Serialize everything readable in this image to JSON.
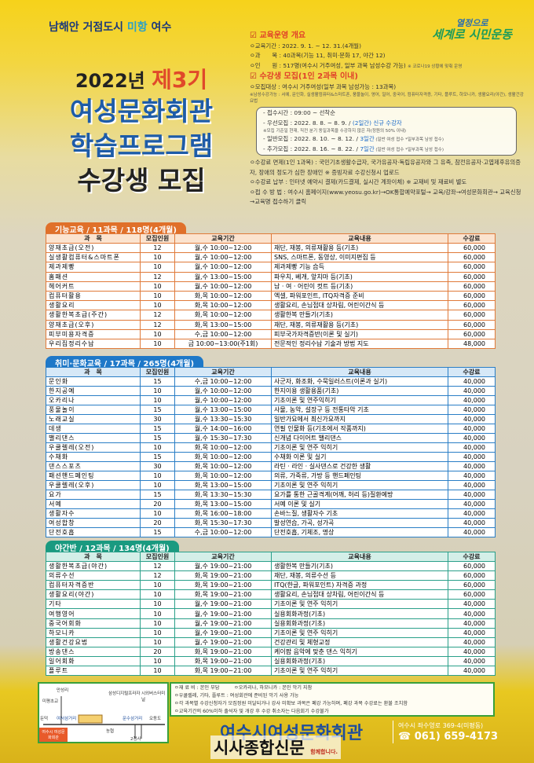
{
  "header": {
    "slogan_a": "남해안 거점도시 ",
    "slogan_b": "미항",
    "slogan_c": " 여수",
    "brand_small": "열정으로",
    "brand": "세계로 시민운동"
  },
  "title": {
    "year": "2022년",
    "term": "제3기",
    "line1": "여성문화회관",
    "line2": "학습프로그램",
    "line3": "수강생 모집"
  },
  "info": {
    "overview_title": "교육운영 개요",
    "overview": [
      "ㅇ교육기간 : 2022. 9. 1. ~ 12. 31.(4개월)",
      "ㅇ과　　목 : 40과목(기능 11, 취미·문화 17, 야간 12)",
      "ㅇ인　　원 : 517명(여수시 거주여성, 일부 과목 남성수강 가능)"
    ],
    "covid_note": "※ 코로나19 상황에 맞춰 운영",
    "recruit_title": "수강생 모집(1인 2과목 이내)",
    "target": "ㅇ모집대상 : 여수시 거주여성(일부 과목 남성가능 : 13과목)",
    "male_note": "※남성수강가능 : 서예, 문인화, 실생활컴퓨터&스마트폰, 풍물놀이, 영어, 일어, 중국어, 컴퓨터자격증, 기타, 플루트, 하모니카, 생활요리(야간), 생활건강요법",
    "box": {
      "time": "- 접수시간 : 09:00 ~ 선착순",
      "p1": "- 우선모집 : 2022. 8. 8. ~ 8. 9. / ",
      "p1b": "(2일간) 신규 수강자",
      "p1note": "※모집 기준일 현재, 직전 분기 동일과목을 수강하지 않은 자(정원의 50% 이내)",
      "p2": "- 일반모집 : 2022. 8. 10. ~ 8. 12. / ",
      "p2b": "3일간",
      "p2c": " (일반 여성 접수 *일부과목 남성 접수)",
      "p3": "- 추가모집 : 2022. 8. 16. ~ 8. 22. / ",
      "p3b": "7일간",
      "p3c": " (일반 여성 접수 *일부과목 남성 접수)"
    },
    "fee_exempt": "ㅇ수강료 면제(1인 1과목) : 국민기초생활수급자, 국가유공자·독립유공자와 그 유족, 참전유공자·고엽제후유의증자, 장애의 정도가 심한 장애인 ※ 증빙자료 수강신청시 업로드",
    "fee_pay": "ㅇ수강료 납부 : 인터넷 예약시 결제(카드결제, 실시간 계좌이체) ※ 교재비 및 재료비 별도",
    "apply": "ㅇ접 수 방 법 : 여수시 홈페이지(www.yeosu.go.kr)→OK통합예약포털→ 교육/강좌→여성문화회관→ 교육신청→교육명 접수하기 클릭"
  },
  "columns": [
    "과　목",
    "모집인원",
    "교육기간",
    "교육내용",
    "수강료"
  ],
  "tables": [
    {
      "title": "기능교육 / 11과목 / 118명(4개월)",
      "color": "#e0702a",
      "rows": [
        [
          "양재초급(오전)",
          "12",
          "월,수 10:00~12:00",
          "재단, 재봉, 의류재활용 등(기초)",
          "60,000"
        ],
        [
          "실생활컴퓨터&스마트폰",
          "10",
          "월,수 10:00~12:00",
          "SNS, 스마트폰, 동영상, 이미지편집 등",
          "60,000"
        ],
        [
          "제과제빵",
          "10",
          "월,수 10:00~12:00",
          "제과제빵 기능 습득",
          "60,000"
        ],
        [
          "홈패션",
          "12",
          "월,수 13:00~15:00",
          "파우치, 베개, 앞치마 등(기초)",
          "60,000"
        ],
        [
          "헤어커트",
          "10",
          "월,수 10:00~12:00",
          "남 · 여 · 어린이 컷트 등(기초)",
          "60,000"
        ],
        [
          "컴퓨터활용",
          "10",
          "화,목 10:00~12:00",
          "엑셀, 파워포인트, ITQ자격증 준비",
          "60,000"
        ],
        [
          "생활요리",
          "10",
          "화,목 10:00~12:00",
          "생활요리, 손님접대 상차림, 어린이간식 등",
          "60,000"
        ],
        [
          "생활한복초급(주간)",
          "12",
          "화,목 10:00~12:00",
          "생활한복 만들기(기초)",
          "60,000"
        ],
        [
          "양재초급(오후)",
          "12",
          "화,목 13:00~15:00",
          "재단, 재봉, 의류재활용 등(기초)",
          "60,000"
        ],
        [
          "피부미용자격증",
          "10",
          "수,금 10:00~12:00",
          "피부국가자격증반(이론 및 실기)",
          "60,000"
        ],
        [
          "우리집정리수납",
          "10",
          "금 10:00~13:00(주1회)",
          "전문적인 정리수납 기술과 방법 지도",
          "48,000"
        ]
      ]
    },
    {
      "title": "취미·문화교육 / 17과목 / 265명(4개월)",
      "color": "#1e78c8",
      "rows": [
        [
          "문인화",
          "15",
          "수,금 10:00~12:00",
          "사군자, 화조화, 수묵일러스트(이론과 실기)",
          "40,000"
        ],
        [
          "한지공예",
          "10",
          "월,수 10:00~12:00",
          "한지이용 생활용품(기초)",
          "40,000"
        ],
        [
          "오카리나",
          "10",
          "월,수 10:00~12:00",
          "기초이론 및 연주익히기",
          "40,000"
        ],
        [
          "풍물놀이",
          "15",
          "월,수 13:00~15:00",
          "사물, 농악, 설장구 등 전통타악 기초",
          "40,000"
        ],
        [
          "노래교실",
          "30",
          "월,수 13:30~15:30",
          "일반가요에서 최신가요까지",
          "40,000"
        ],
        [
          "데생",
          "15",
          "월,수 14:00~16:00",
          "연필 인물화 등(기초에서 작품까지)",
          "40,000"
        ],
        [
          "밸리댄스",
          "15",
          "월,수 15:30~17:30",
          "신개념 다이어트 밸리댄스",
          "40,000"
        ],
        [
          "우쿨렐레(오전)",
          "10",
          "화,목 10:00~12:00",
          "기초이론 및 연주 익히기",
          "40,000"
        ],
        [
          "수채화",
          "15",
          "화,목 10:00~12:00",
          "수채화 이론 및 실기",
          "40,000"
        ],
        [
          "댄스스포츠",
          "30",
          "화,목 10:00~12:00",
          "라틴 · 라인 · 실사댄스로 건강한 생활",
          "40,000"
        ],
        [
          "패션핸드페인팅",
          "10",
          "화,목 10:00~12:00",
          "의류, 가죽류, 가방 등 핸드페인팅",
          "40,000"
        ],
        [
          "우쿨렐레(오후)",
          "10",
          "화,목 13:00~15:00",
          "기초이론 및 연주 익히기",
          "40,000"
        ],
        [
          "요가",
          "15",
          "화,목 13:30~15:30",
          "요가를 통한 근골격계(어깨, 허리 등)질환예방",
          "40,000"
        ],
        [
          "서예",
          "20",
          "화,목 13:00~15:00",
          "서예 이론 및 실기",
          "40,000"
        ],
        [
          "생활자수",
          "10",
          "화,목 16:00~18:00",
          "손바느질, 생활자수 기초",
          "40,000"
        ],
        [
          "여성합창",
          "20",
          "화,목 15:30~17:30",
          "발성연습, 가곡, 성가곡",
          "40,000"
        ],
        [
          "단전호흡",
          "15",
          "수,금 10:00~12:00",
          "단전호흡, 기체조, 명상",
          "40,000"
        ]
      ]
    },
    {
      "title": "야간반 / 12과목 / 134명(4개월)",
      "color": "#1a9a80",
      "rows": [
        [
          "생활한복초급(야간)",
          "12",
          "월,수 19:00~21:00",
          "생활한복 만들기(기초)",
          "60,000"
        ],
        [
          "의류수선",
          "12",
          "화,목 19:00~21:00",
          "재단, 재봉, 의류수선 등",
          "60,000"
        ],
        [
          "컴퓨터자격증반",
          "10",
          "화,목 19:00~21:00",
          "ITQ(한글, 파워포인트) 자격증 과정",
          "60,000"
        ],
        [
          "생활요리(야간)",
          "10",
          "화,목 19:00~21:00",
          "생활요리, 손님접대 상차림, 어린이간식 등",
          "60,000"
        ],
        [
          "기타",
          "10",
          "월,수 19:00~21:00",
          "기초이론 및 연주 익히기",
          "40,000"
        ],
        [
          "여행영어",
          "10",
          "월,수 19:00~21:00",
          "실용회화과정(기초)",
          "40,000"
        ],
        [
          "중국어회화",
          "10",
          "월,수 19:00~21:00",
          "실용회화과정(기초)",
          "40,000"
        ],
        [
          "하모니카",
          "10",
          "월,수 19:00~21:00",
          "기초이론 및 연주 익히기",
          "40,000"
        ],
        [
          "생활건강요법",
          "10",
          "월,수 19:00~21:00",
          "건강관리 및 체형교정",
          "40,000"
        ],
        [
          "방송댄스",
          "20",
          "화,목 19:00~21:00",
          "케이팝 음악에 맞춘 댄스 익히기",
          "40,000"
        ],
        [
          "일어회화",
          "10",
          "화,목 19:00~21:00",
          "실용회화과정(기초)",
          "40,000"
        ],
        [
          "플루트",
          "10",
          "화,목 19:00~21:00",
          "기초이론 및 연주 익히기",
          "40,000"
        ]
      ]
    }
  ],
  "notes": [
    "ㅇ재 료 비 : 본인 부담　　　ㅇ오카리나, 하모니카 : 본인 악기 지참",
    "ㅇ우쿨렐레, 기타, 플루트 : 여성회관에 준비된 악기 사용 가능",
    "ㅇ각 과목별 수강신청자가 모집정원 미달되거나 강사 미확보 과목은 폐강 가능하며, 폐강 과목 수강료는 환불 조치함",
    "ㅇ교육기간의 60%이하 출석자 및 개강 후 수강 취소자는 다음회기 수강불가"
  ],
  "map": {
    "labels": [
      "미평초교",
      "만성리",
      "삼성디지털프라자",
      "시외버스터미널",
      "둔덕",
      "여서삼거리",
      "문수삼거리",
      "오동도",
      "농협",
      "2청사"
    ],
    "place": "여수시 여성문화회관"
  },
  "footer": {
    "center": "여수시여성문화회관",
    "address": "여수시 좌수영로 369-4(미평동)",
    "phone": "☎ 061) 659-4173",
    "tagline": "함께합니다.",
    "watermark": "시사종합신문"
  }
}
